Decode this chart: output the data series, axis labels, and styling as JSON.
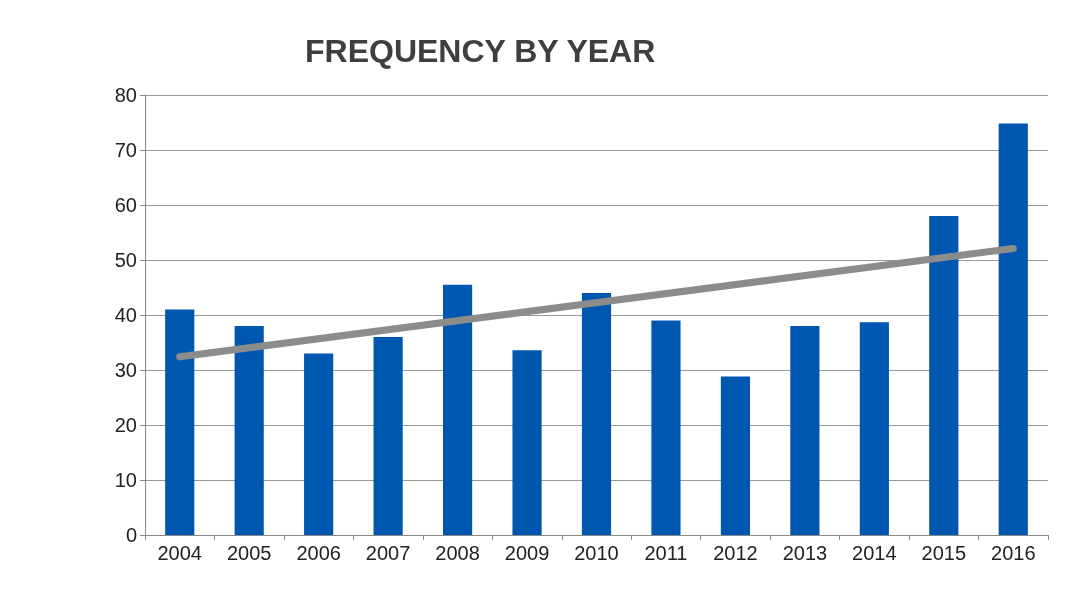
{
  "chart_data": {
    "type": "bar",
    "title": "FREQUENCY BY YEAR",
    "categories": [
      "2004",
      "2005",
      "2006",
      "2007",
      "2008",
      "2009",
      "2010",
      "2011",
      "2012",
      "2013",
      "2014",
      "2015",
      "2016"
    ],
    "series": [
      {
        "color": "#0057b0",
        "values": [
          41,
          38,
          33,
          36,
          45.5,
          33.6,
          44,
          39,
          28.8,
          38,
          38.7,
          58,
          74.8
        ]
      },
      {
        "type": "line",
        "color": "#8c8c8c",
        "values": [
          32.4,
          null,
          null,
          null,
          null,
          null,
          null,
          null,
          null,
          null,
          null,
          null,
          52.1
        ],
        "marker": "none",
        "line_style": "solid"
      }
    ],
    "ylim": [
      0,
      80
    ],
    "yticks": [
      0,
      10,
      20,
      30,
      40,
      50,
      60,
      70,
      80
    ],
    "grid": "y"
  }
}
